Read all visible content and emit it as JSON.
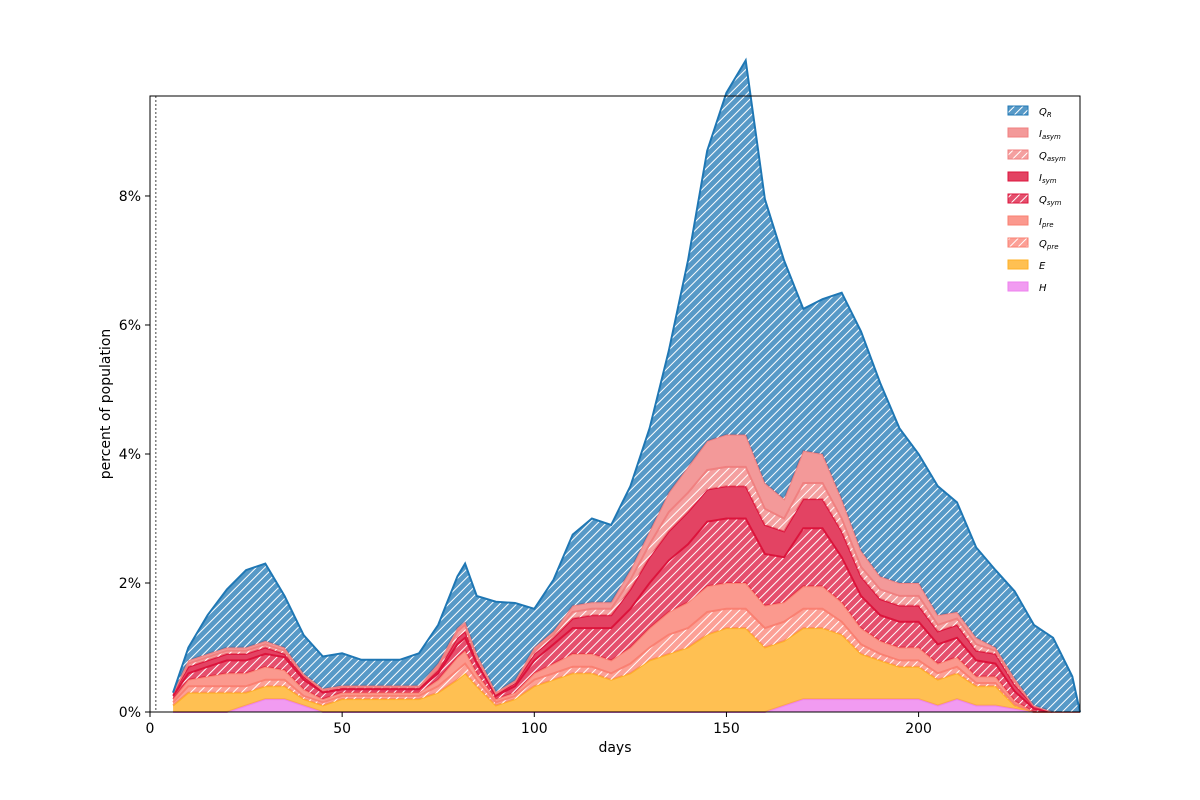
{
  "chart_data": {
    "type": "area",
    "stacking": "stacked",
    "xlabel": "days",
    "ylabel": "percent of population",
    "xlim": [
      0,
      242
    ],
    "ylim": [
      0,
      9.55
    ],
    "xticks": [
      0,
      50,
      100,
      150,
      200
    ],
    "xtick_labels": [
      "0",
      "50",
      "100",
      "150",
      "200"
    ],
    "yticks": [
      0,
      2,
      4,
      6,
      8
    ],
    "ytick_labels": [
      "0%",
      "2%",
      "4%",
      "6%",
      "8%"
    ],
    "vline_x": 1.5,
    "grid": false,
    "legend_position": "top-right",
    "x": [
      6,
      10,
      15,
      20,
      25,
      30,
      35,
      40,
      45,
      50,
      55,
      60,
      65,
      70,
      75,
      80,
      82,
      85,
      90,
      95,
      100,
      105,
      110,
      115,
      120,
      125,
      130,
      135,
      140,
      145,
      150,
      155,
      160,
      165,
      170,
      175,
      180,
      185,
      190,
      195,
      200,
      205,
      210,
      215,
      220,
      225,
      230,
      235,
      240,
      242
    ],
    "series": [
      {
        "name": "H",
        "label_main": "H",
        "label_sub": "",
        "color": "#ee82ee",
        "hatch": false,
        "values": [
          0,
          0,
          0,
          0,
          0.1,
          0.2,
          0.2,
          0.1,
          0,
          0,
          0,
          0,
          0,
          0,
          0,
          0,
          0,
          0,
          0,
          0,
          0,
          0,
          0,
          0,
          0,
          0,
          0,
          0,
          0,
          0,
          0,
          0,
          0,
          0.1,
          0.2,
          0.2,
          0.2,
          0.2,
          0.2,
          0.2,
          0.2,
          0.1,
          0.2,
          0.1,
          0.1,
          0.05,
          0,
          0,
          0,
          0
        ]
      },
      {
        "name": "E",
        "label_main": "E",
        "label_sub": "",
        "color": "#ffb027",
        "hatch": false,
        "values": [
          0.1,
          0.3,
          0.3,
          0.3,
          0.2,
          0.2,
          0.2,
          0.1,
          0.1,
          0.2,
          0.2,
          0.2,
          0.2,
          0.2,
          0.3,
          0.5,
          0.6,
          0.4,
          0.1,
          0.2,
          0.4,
          0.5,
          0.6,
          0.6,
          0.5,
          0.6,
          0.8,
          0.9,
          1.0,
          1.2,
          1.3,
          1.3,
          1.0,
          1.0,
          1.1,
          1.1,
          1.0,
          0.7,
          0.6,
          0.5,
          0.5,
          0.4,
          0.4,
          0.3,
          0.3,
          0.05,
          0,
          0,
          0,
          0
        ]
      },
      {
        "name": "Q_pre",
        "label_main": "Q",
        "label_sub": "pre",
        "color": "#fa8072",
        "hatch": true,
        "values": [
          0.05,
          0.1,
          0.1,
          0.1,
          0.1,
          0.1,
          0.1,
          0.05,
          0.05,
          0.05,
          0.05,
          0.05,
          0.05,
          0.05,
          0.1,
          0.15,
          0.15,
          0.1,
          0.05,
          0.05,
          0.1,
          0.1,
          0.1,
          0.1,
          0.1,
          0.15,
          0.2,
          0.3,
          0.3,
          0.35,
          0.3,
          0.3,
          0.3,
          0.3,
          0.3,
          0.3,
          0.2,
          0.15,
          0.1,
          0.1,
          0.1,
          0.1,
          0.1,
          0.05,
          0.05,
          0.02,
          0,
          0,
          0,
          0
        ]
      },
      {
        "name": "I_pre",
        "label_main": "I",
        "label_sub": "pre",
        "color": "#fa8072",
        "hatch": false,
        "values": [
          0.05,
          0.1,
          0.15,
          0.2,
          0.2,
          0.2,
          0.15,
          0.1,
          0.05,
          0.05,
          0.05,
          0.05,
          0.05,
          0.05,
          0.1,
          0.2,
          0.2,
          0.1,
          0.05,
          0.05,
          0.1,
          0.15,
          0.2,
          0.2,
          0.2,
          0.25,
          0.3,
          0.35,
          0.4,
          0.4,
          0.4,
          0.4,
          0.35,
          0.3,
          0.35,
          0.35,
          0.3,
          0.25,
          0.2,
          0.2,
          0.2,
          0.15,
          0.15,
          0.1,
          0.1,
          0.05,
          0,
          0,
          0,
          0
        ]
      },
      {
        "name": "Q_sym",
        "label_main": "Q",
        "label_sub": "sym",
        "color": "#dc143c",
        "hatch": true,
        "values": [
          0.05,
          0.1,
          0.15,
          0.2,
          0.2,
          0.2,
          0.2,
          0.15,
          0.1,
          0.05,
          0.05,
          0.05,
          0.05,
          0.05,
          0.1,
          0.2,
          0.2,
          0.15,
          0.05,
          0.1,
          0.2,
          0.3,
          0.4,
          0.4,
          0.5,
          0.6,
          0.7,
          0.8,
          0.9,
          1.0,
          1.0,
          1.0,
          0.8,
          0.7,
          0.9,
          0.9,
          0.7,
          0.5,
          0.4,
          0.4,
          0.4,
          0.3,
          0.3,
          0.25,
          0.2,
          0.15,
          0.05,
          0,
          0,
          0
        ]
      },
      {
        "name": "I_sym",
        "label_main": "I",
        "label_sub": "sym",
        "color": "#dc143c",
        "hatch": false,
        "values": [
          0.05,
          0.1,
          0.1,
          0.1,
          0.1,
          0.1,
          0.05,
          0.05,
          0.02,
          0.02,
          0.02,
          0.02,
          0.02,
          0.02,
          0.05,
          0.1,
          0.1,
          0.05,
          0.02,
          0.05,
          0.1,
          0.1,
          0.15,
          0.2,
          0.2,
          0.3,
          0.4,
          0.45,
          0.5,
          0.5,
          0.5,
          0.5,
          0.45,
          0.4,
          0.45,
          0.45,
          0.4,
          0.3,
          0.25,
          0.25,
          0.25,
          0.2,
          0.2,
          0.15,
          0.15,
          0.1,
          0.05,
          0,
          0,
          0
        ]
      },
      {
        "name": "Q_asym",
        "label_main": "Q",
        "label_sub": "asym",
        "color": "#f08080",
        "hatch": true,
        "values": [
          0,
          0.05,
          0.05,
          0.05,
          0.05,
          0.05,
          0.05,
          0.02,
          0.02,
          0.02,
          0.02,
          0.02,
          0.02,
          0.02,
          0.05,
          0.1,
          0.1,
          0.05,
          0.02,
          0.02,
          0.05,
          0.05,
          0.1,
          0.1,
          0.1,
          0.15,
          0.2,
          0.3,
          0.3,
          0.3,
          0.3,
          0.3,
          0.25,
          0.2,
          0.25,
          0.25,
          0.2,
          0.15,
          0.15,
          0.15,
          0.15,
          0.1,
          0.1,
          0.1,
          0.05,
          0.05,
          0,
          0,
          0,
          0
        ]
      },
      {
        "name": "I_asym",
        "label_main": "I",
        "label_sub": "asym",
        "color": "#f08080",
        "hatch": false,
        "values": [
          0,
          0.05,
          0.05,
          0.05,
          0.05,
          0.05,
          0.05,
          0.02,
          0.02,
          0.02,
          0.02,
          0.02,
          0.02,
          0.02,
          0.05,
          0.05,
          0.05,
          0.05,
          0.02,
          0.02,
          0.05,
          0.05,
          0.1,
          0.1,
          0.1,
          0.15,
          0.2,
          0.3,
          0.4,
          0.45,
          0.5,
          0.5,
          0.4,
          0.3,
          0.5,
          0.45,
          0.3,
          0.25,
          0.2,
          0.2,
          0.2,
          0.15,
          0.1,
          0.1,
          0.05,
          0.05,
          0,
          0,
          0,
          0
        ]
      },
      {
        "name": "Q_R",
        "label_main": "Q",
        "label_sub": "R",
        "color": "#1f77b4",
        "hatch": true,
        "values": [
          0,
          0.2,
          0.6,
          0.9,
          1.2,
          1.2,
          0.8,
          0.6,
          0.5,
          0.5,
          0.4,
          0.4,
          0.4,
          0.5,
          0.6,
          0.8,
          0.9,
          0.9,
          1.4,
          1.2,
          0.6,
          0.8,
          1.1,
          1.3,
          1.2,
          1.3,
          1.6,
          2.2,
          3.2,
          4.5,
          5.3,
          5.8,
          4.4,
          3.7,
          2.2,
          2.4,
          3.2,
          3.4,
          3.0,
          2.4,
          2.0,
          2.0,
          1.7,
          1.4,
          1.2,
          1.35,
          1.25,
          1.15,
          0.55,
          0
        ]
      }
    ]
  }
}
